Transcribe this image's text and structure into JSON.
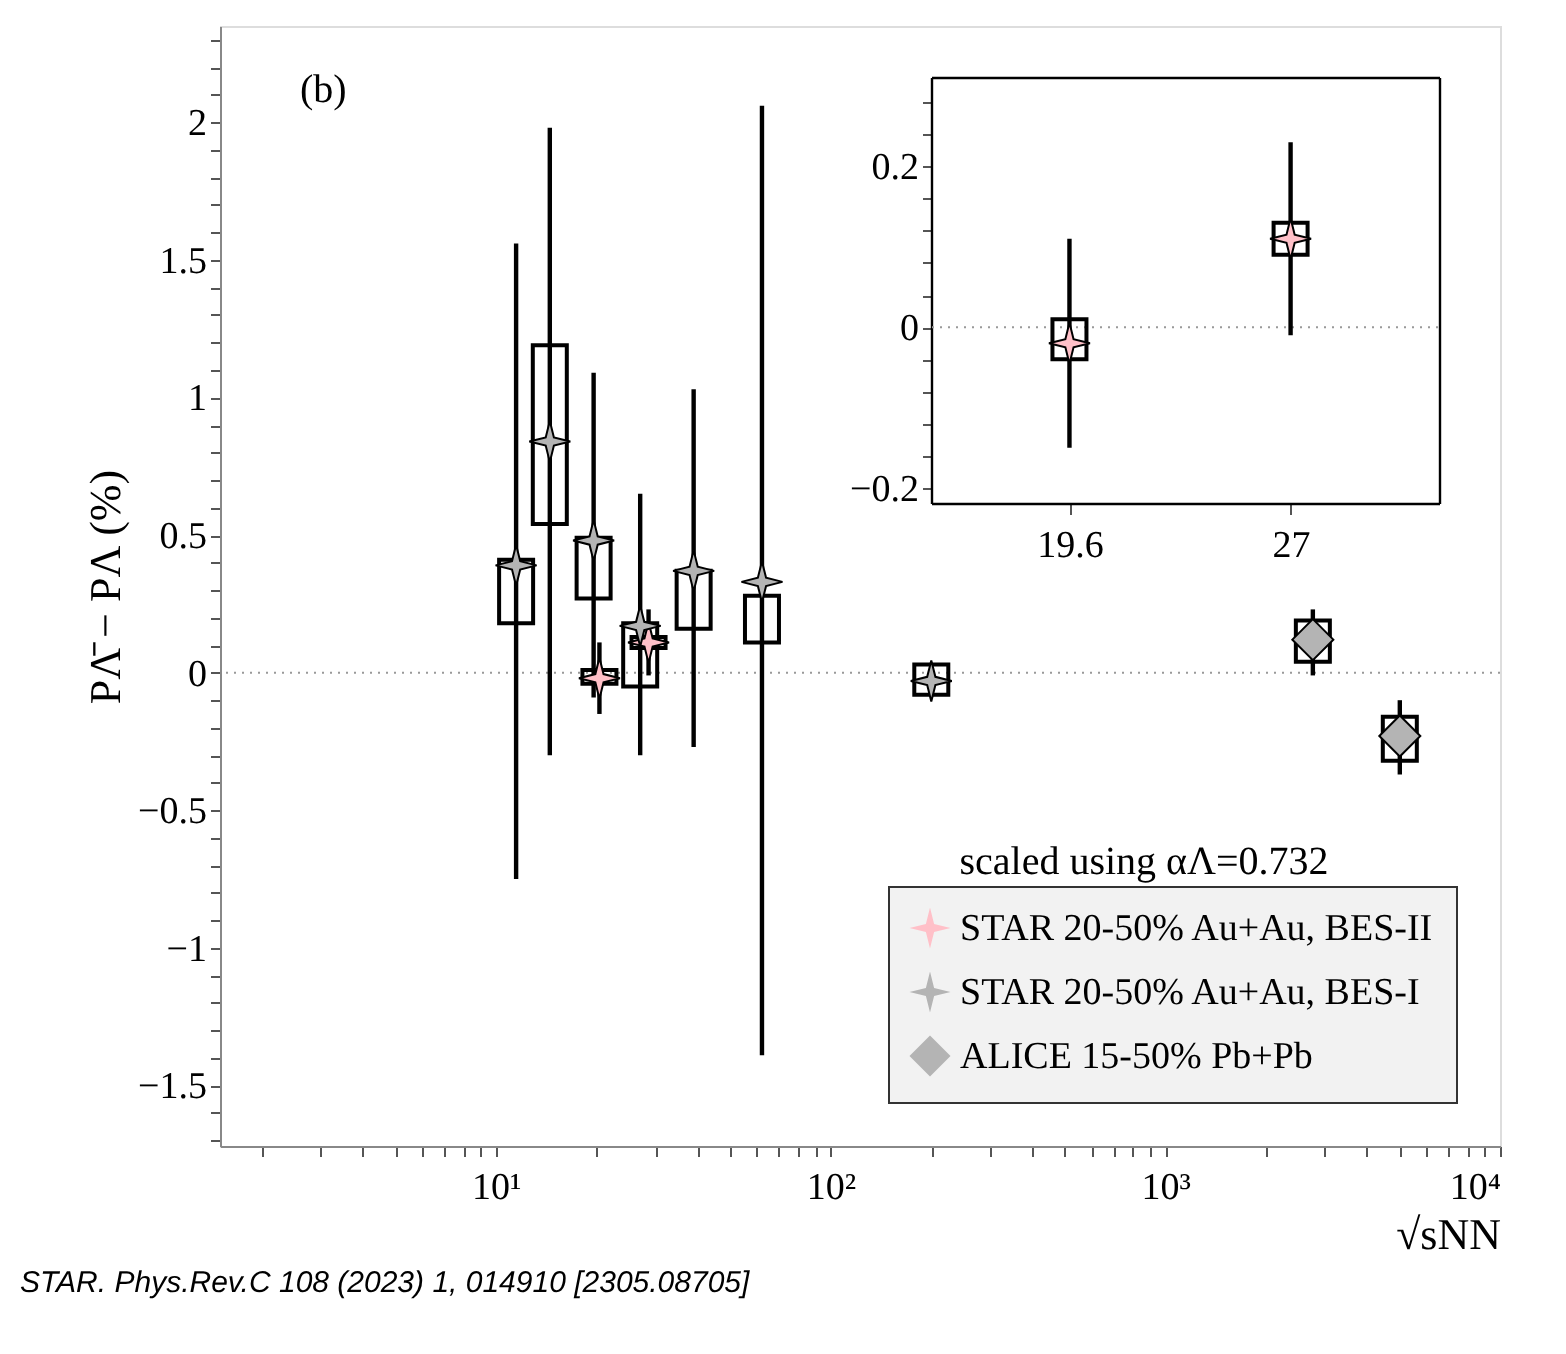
{
  "chart_data": [
    {
      "type": "scatter",
      "xlabel": "√sNN",
      "ylabel": "PΛ̄ − PΛ (%)",
      "log": "x",
      "grid": false,
      "legend": "bottom right",
      "xlim": [
        1.5,
        10000
      ],
      "xticks": [
        {
          "value": 2,
          "label": null
        },
        {
          "value": 3,
          "label": null
        },
        {
          "value": 4,
          "label": null
        },
        {
          "value": 5,
          "label": null
        },
        {
          "value": 6,
          "label": null
        },
        {
          "value": 7,
          "label": null
        },
        {
          "value": 8,
          "label": null
        },
        {
          "value": 9,
          "label": null
        },
        {
          "value": 10,
          "label": "10¹"
        },
        {
          "value": 20,
          "label": null
        },
        {
          "value": 30,
          "label": null
        },
        {
          "value": 40,
          "label": null
        },
        {
          "value": 50,
          "label": null
        },
        {
          "value": 60,
          "label": null
        },
        {
          "value": 70,
          "label": null
        },
        {
          "value": 80,
          "label": null
        },
        {
          "value": 90,
          "label": null
        },
        {
          "value": 100,
          "label": "10²"
        },
        {
          "value": 200,
          "label": null
        },
        {
          "value": 300,
          "label": null
        },
        {
          "value": 400,
          "label": null
        },
        {
          "value": 500,
          "label": null
        },
        {
          "value": 600,
          "label": null
        },
        {
          "value": 700,
          "label": null
        },
        {
          "value": 800,
          "label": null
        },
        {
          "value": 900,
          "label": null
        },
        {
          "value": 1000,
          "label": "10³"
        },
        {
          "value": 2000,
          "label": null
        },
        {
          "value": 3000,
          "label": null
        },
        {
          "value": 4000,
          "label": null
        },
        {
          "value": 5000,
          "label": null
        },
        {
          "value": 6000,
          "label": null
        },
        {
          "value": 7000,
          "label": null
        },
        {
          "value": 8000,
          "label": null
        },
        {
          "value": 9000,
          "label": null
        },
        {
          "value": 10000,
          "label": "10⁴"
        }
      ],
      "ylim": [
        -1.72,
        2.35
      ],
      "yticks": [
        {
          "value": -1.7,
          "label": null
        },
        {
          "value": -1.6,
          "label": null
        },
        -1.5,
        {
          "value": -1.4,
          "label": null
        },
        {
          "value": -1.3,
          "label": null
        },
        {
          "value": -1.2,
          "label": null
        },
        {
          "value": -1.1,
          "label": null
        },
        -1,
        {
          "value": -0.9,
          "label": null
        },
        {
          "value": -0.8,
          "label": null
        },
        {
          "value": -0.7,
          "label": null
        },
        {
          "value": -0.6,
          "label": null
        },
        -0.5,
        {
          "value": -0.4,
          "label": null
        },
        {
          "value": -0.3,
          "label": null
        },
        {
          "value": -0.2,
          "label": null
        },
        {
          "value": -0.1,
          "label": null
        },
        0,
        {
          "value": 0.1,
          "label": null
        },
        {
          "value": 0.2,
          "label": null
        },
        {
          "value": 0.3,
          "label": null
        },
        {
          "value": 0.4,
          "label": null
        },
        0.5,
        {
          "value": 0.6,
          "label": null
        },
        {
          "value": 0.7,
          "label": null
        },
        {
          "value": 0.8,
          "label": null
        },
        {
          "value": 0.9,
          "label": null
        },
        1,
        {
          "value": 1.1,
          "label": null
        },
        {
          "value": 1.2,
          "label": null
        },
        {
          "value": 1.3,
          "label": null
        },
        {
          "value": 1.4,
          "label": null
        },
        1.5,
        {
          "value": 1.6,
          "label": null
        },
        {
          "value": 1.7,
          "label": null
        },
        {
          "value": 1.8,
          "label": null
        },
        {
          "value": 1.9,
          "label": null
        },
        2,
        {
          "value": 2.1,
          "label": null
        },
        {
          "value": 2.2,
          "label": null
        },
        {
          "value": 2.3,
          "label": null
        }
      ],
      "ref_lines": [
        {
          "axis": "y",
          "value": 0,
          "color": "#999999",
          "line_style": "dotted"
        }
      ],
      "annotations": [
        "(b)",
        "scaled using αΛ=0.732",
        "STAR. Phys.Rev.C 108 (2023) 1, 014910 [2305.08705]"
      ],
      "series": [
        {
          "type": "bar",
          "color": "#000000",
          "x": [
            11.5,
            14.5,
            19.6,
            20.4,
            27,
            28.6,
            39,
            62.4,
            200,
            2760,
            5020
          ],
          "base": [
            0.18,
            0.54,
            0.27,
            -0.04,
            -0.05,
            0.09,
            0.16,
            0.11,
            -0.08,
            0.04,
            -0.32
          ],
          "values": [
            0.23,
            0.65,
            0.22,
            0.05,
            0.23,
            0.04,
            0.21,
            0.17,
            0.11,
            0.15,
            0.16
          ]
        },
        {
          "name": "STAR 20-50% Au+Au, BES-II",
          "marker": "star",
          "color": "#ffc0c8",
          "x": [
            20.4,
            28.6
          ],
          "values": [
            -0.02,
            0.11
          ],
          "errors": [
            [
              -0.15,
              0.11
            ],
            [
              -0.01,
              0.23
            ]
          ]
        },
        {
          "name": "STAR 20-50% Au+Au, BES-I",
          "marker": "star",
          "color": "#b4b4b4",
          "x": [
            11.5,
            14.5,
            19.6,
            27,
            39,
            62.4,
            200
          ],
          "values": [
            0.39,
            0.84,
            0.48,
            0.17,
            0.37,
            0.33,
            -0.03
          ],
          "errors": [
            [
              -0.75,
              1.56
            ],
            [
              -0.3,
              1.98
            ],
            [
              -0.09,
              1.09
            ],
            [
              -0.3,
              0.65
            ],
            [
              -0.27,
              1.03
            ],
            [
              -1.39,
              2.06
            ],
            [
              -0.08,
              0.02
            ]
          ]
        },
        {
          "name": "ALICE 15-50% Pb+Pb",
          "marker": "diamond",
          "color": "#b4b4b4",
          "x": [
            2760,
            5020
          ],
          "values": [
            0.12,
            -0.23
          ],
          "errors": [
            [
              -0.01,
              0.23
            ],
            [
              -0.37,
              -0.1
            ]
          ]
        }
      ]
    },
    {
      "type": "scatter",
      "grid": false,
      "xlim": [
        15,
        32
      ],
      "xticks": [
        19.6,
        27
      ],
      "ylim": [
        -0.22,
        0.31
      ],
      "yticks": [
        -0.2,
        {
          "value": -0.16,
          "label": null
        },
        {
          "value": -0.12,
          "label": null
        },
        {
          "value": -0.08,
          "label": null
        },
        {
          "value": -0.04,
          "label": null
        },
        0,
        {
          "value": 0.04,
          "label": null
        },
        {
          "value": 0.08,
          "label": null
        },
        {
          "value": 0.12,
          "label": null
        },
        {
          "value": 0.16,
          "label": null
        },
        0.2,
        {
          "value": 0.24,
          "label": null
        },
        {
          "value": 0.28,
          "label": null
        }
      ],
      "ref_lines": [
        {
          "axis": "y",
          "value": 0,
          "color": "#999999",
          "line_style": "dotted"
        }
      ],
      "series": [
        {
          "type": "bar",
          "color": "#000000",
          "x": [
            19.6,
            27
          ],
          "base": [
            -0.04,
            0.09
          ],
          "values": [
            0.05,
            0.04
          ]
        },
        {
          "marker": "star",
          "color": "#ffc0c8",
          "x": [
            19.6,
            27
          ],
          "values": [
            -0.02,
            0.11
          ],
          "errors": [
            [
              -0.15,
              0.11
            ],
            [
              -0.01,
              0.23
            ]
          ]
        }
      ]
    }
  ]
}
